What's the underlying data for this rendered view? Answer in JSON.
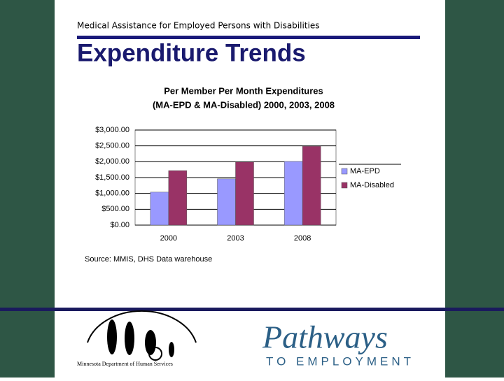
{
  "header": {
    "subtitle": "Medical Assistance for Employed Persons with Disabilities",
    "title": "Expenditure Trends"
  },
  "chart_data": {
    "type": "bar",
    "title": "Per Member Per Month Expenditures",
    "subtitle": "(MA-EPD & MA-Disabled) 2000, 2003, 2008",
    "categories": [
      "2000",
      "2003",
      "2008"
    ],
    "series": [
      {
        "name": "MA-EPD",
        "color": "#9999ff",
        "values": [
          1040,
          1460,
          2010
        ]
      },
      {
        "name": "MA-Disabled",
        "color": "#993366",
        "values": [
          1720,
          1990,
          2490
        ]
      }
    ],
    "ylim": [
      0,
      3000
    ],
    "yticks": [
      {
        "value": 0,
        "label": "$0.00"
      },
      {
        "value": 500,
        "label": "$500.00"
      },
      {
        "value": 1000,
        "label": "$1,000.00"
      },
      {
        "value": 1500,
        "label": "$1,500.00"
      },
      {
        "value": 2000,
        "label": "$2,000.00"
      },
      {
        "value": 2500,
        "label": "$2,500.00"
      },
      {
        "value": 3000,
        "label": "$3,000.00"
      }
    ],
    "grid": true,
    "legend": "right"
  },
  "source": "Source: MMIS, DHS Data warehouse",
  "footer": {
    "dhs_logo": "Minnesota Department of Human Services",
    "pathways_logo": "Pathways",
    "pathways_tagline": "TO EMPLOYMENT"
  }
}
